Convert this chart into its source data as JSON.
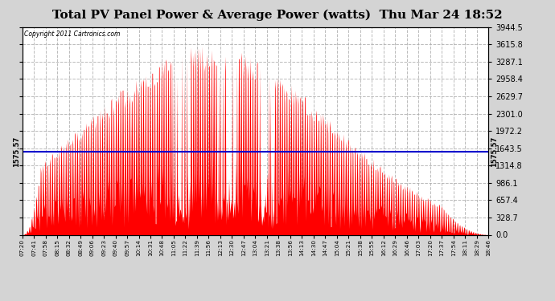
{
  "title": "Total PV Panel Power & Average Power (watts)  Thu Mar 24 18:52",
  "copyright": "Copyright 2011 Cartronics.com",
  "ymin": 0.0,
  "ymax": 3944.5,
  "ytick_values": [
    0.0,
    328.7,
    657.4,
    986.1,
    1314.8,
    1643.5,
    1972.2,
    2301.0,
    2629.7,
    2958.4,
    3287.1,
    3615.8,
    3944.5
  ],
  "ytick_labels": [
    "0.0",
    "328.7",
    "657.4",
    "986.1",
    "1314.8",
    "1643.5",
    "1972.2",
    "2301.0",
    "2629.7",
    "2958.4",
    "3287.1",
    "3615.8",
    "3944.5"
  ],
  "average_line": 1575.57,
  "avg_label": "1575.57",
  "fig_bg": "#d4d4d4",
  "plot_bg": "#ffffff",
  "bar_color": "#ff0000",
  "avg_line_color": "#0000cc",
  "grid_color": "#aaaaaa",
  "title_fontsize": 11,
  "xtick_labels": [
    "07:20",
    "07:41",
    "07:58",
    "08:15",
    "08:32",
    "08:49",
    "09:06",
    "09:23",
    "09:40",
    "09:57",
    "10:14",
    "10:31",
    "10:48",
    "11:05",
    "11:22",
    "11:39",
    "11:56",
    "12:13",
    "12:30",
    "12:47",
    "13:04",
    "13:21",
    "13:38",
    "13:56",
    "14:13",
    "14:30",
    "14:47",
    "15:04",
    "15:21",
    "15:38",
    "15:55",
    "16:12",
    "16:29",
    "16:46",
    "17:03",
    "17:20",
    "17:37",
    "17:54",
    "18:11",
    "18:29",
    "18:46"
  ],
  "n_dense": 820
}
